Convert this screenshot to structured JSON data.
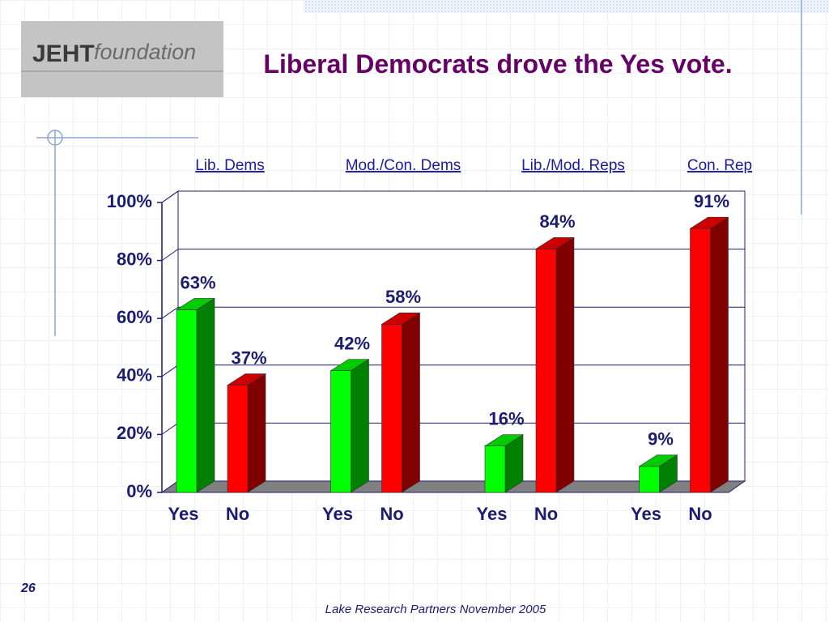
{
  "logo": {
    "brand": "JEHT",
    "word": "foundation"
  },
  "page_number": "26",
  "footer": "Lake Research Partners November 2005",
  "chart_data": {
    "type": "bar3d",
    "title": "Liberal Democrats drove the Yes vote.",
    "groups": [
      "Lib. Dems",
      "Mod./Con. Dems",
      "Lib./Mod. Reps",
      "Con. Rep"
    ],
    "series": [
      {
        "name": "Yes",
        "color": "#00ff00",
        "values": [
          63,
          42,
          16,
          9
        ],
        "value_labels": [
          "63%",
          "42%",
          "16%",
          "9%"
        ]
      },
      {
        "name": "No",
        "color": "#ff0000",
        "values": [
          37,
          58,
          84,
          91
        ],
        "value_labels": [
          "37%",
          "58%",
          "84%",
          "91%"
        ]
      }
    ],
    "ylim": [
      0,
      100
    ],
    "yticks": [
      {
        "value": 0,
        "label": "0%"
      },
      {
        "value": 20,
        "label": "20%"
      },
      {
        "value": 40,
        "label": "40%"
      },
      {
        "value": 60,
        "label": "60%"
      },
      {
        "value": 80,
        "label": "80%"
      },
      {
        "value": 100,
        "label": "100%"
      }
    ],
    "grid": true
  }
}
